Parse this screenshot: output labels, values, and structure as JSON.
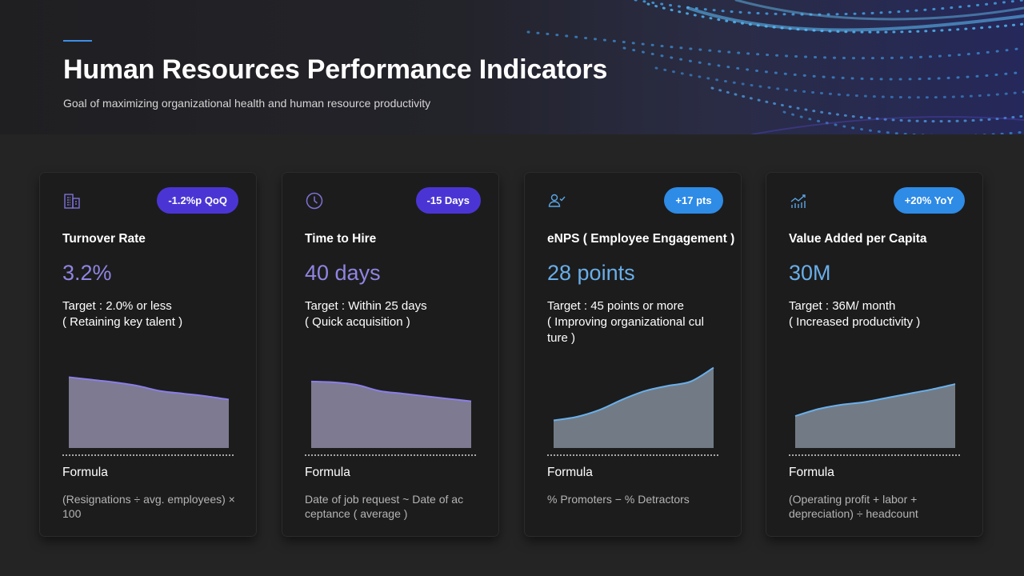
{
  "header": {
    "title": "Human Resources Performance Indicators",
    "subtitle": "Goal of maximizing organizational health and human resource productivity"
  },
  "colors": {
    "accent_purple": "#4a35d4",
    "accent_blue": "#2e8be6",
    "value_purple": "#8f85e2",
    "value_blue": "#69aee9"
  },
  "cards": [
    {
      "icon": "building-icon",
      "badge": "-1.2%p QoQ",
      "title": "Turnover Rate",
      "value": "3.2%",
      "target_line1": "Target : 2.0% or less",
      "target_line2": "( Retaining key talent )",
      "formula_label": "Formula",
      "formula": "(Resignations ÷ avg. employees) × 100",
      "trend": [
        0.82,
        0.79,
        0.76,
        0.72,
        0.66,
        0.63,
        0.6,
        0.56
      ],
      "trend_direction": "down"
    },
    {
      "icon": "clock-icon",
      "badge": "-15 Days",
      "title": "Time to Hire",
      "value": "40 days",
      "target_line1": "Target : Within 25 days",
      "target_line2": "( Quick acquisition  )",
      "formula_label": "Formula",
      "formula": "Date of job request ~ Date of ac ceptance ( average )",
      "trend": [
        0.77,
        0.76,
        0.73,
        0.66,
        0.63,
        0.6,
        0.57,
        0.54
      ],
      "trend_direction": "down"
    },
    {
      "icon": "user-check-icon",
      "badge": "+17 pts",
      "title": "eNPS ( Employee Engagement )",
      "value": "28 points",
      "target_line1": "Target : 45 points or more",
      "target_line2": "( Improving organizational cul ture )",
      "formula_label": "Formula",
      "formula": "% Promoters − % Detractors",
      "trend": [
        0.32,
        0.36,
        0.44,
        0.56,
        0.66,
        0.72,
        0.77,
        0.93
      ],
      "trend_direction": "up"
    },
    {
      "icon": "bar-chart-trend-icon",
      "badge": "+20% YoY",
      "title": "Value Added per Capita",
      "value": "30M",
      "target_line1": "Target : 36M/ month",
      "target_line2": "( Increased productivity  )",
      "formula_label": "Formula",
      "formula": "(Operating profit + labor + depreciation) ÷ headcount",
      "trend": [
        0.37,
        0.45,
        0.5,
        0.53,
        0.58,
        0.63,
        0.68,
        0.74
      ],
      "trend_direction": "up"
    }
  ]
}
